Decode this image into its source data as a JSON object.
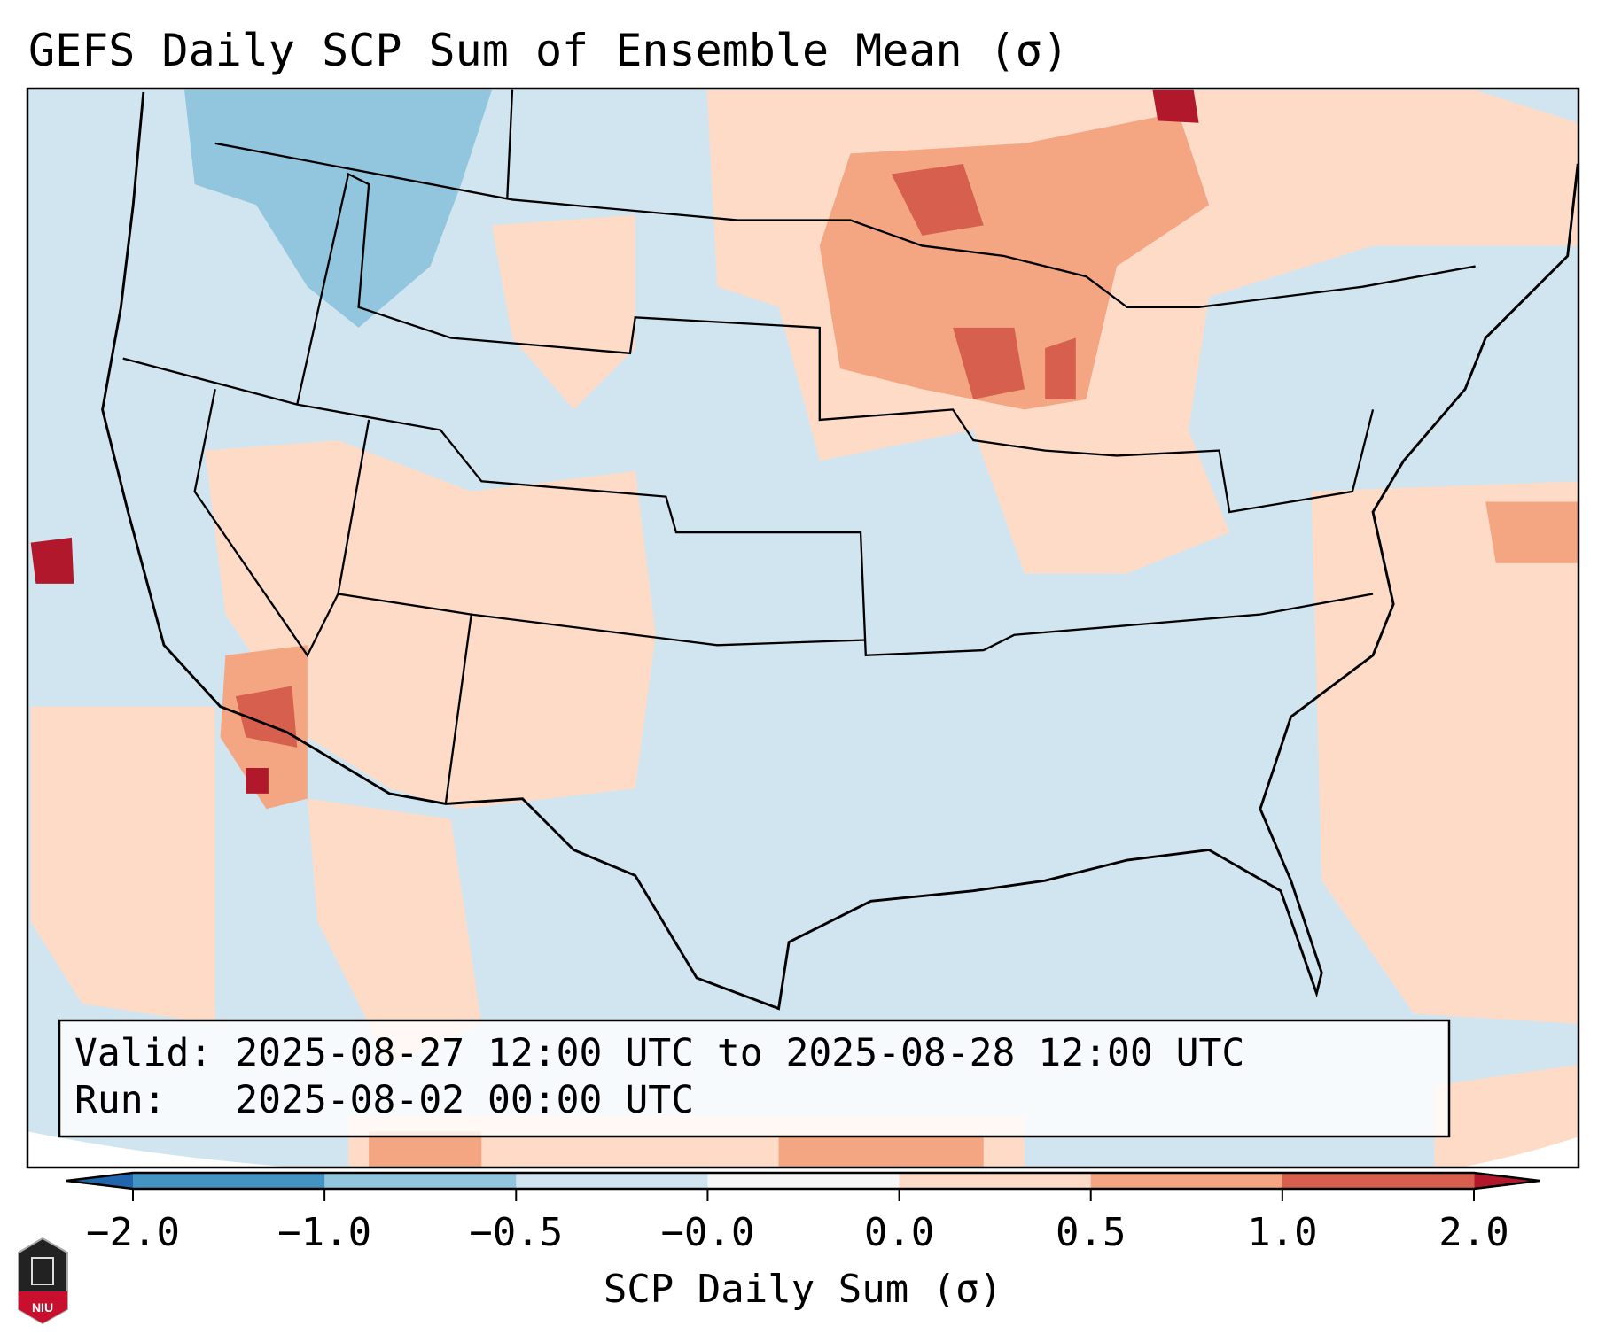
{
  "chart_data": {
    "type": "heatmap",
    "title": "GEFS Daily SCP Sum of Ensemble Mean (σ)",
    "colorbar": {
      "label": "SCP Daily Sum (σ)",
      "ticks": [
        "-2.0",
        "-1.0",
        "-0.5",
        "-0.0",
        "0.0",
        "0.5",
        "1.0",
        "2.0"
      ],
      "colors": [
        "#4393c3",
        "#92c5de",
        "#d1e5f0",
        "#f7f7f7",
        "#fddbc7",
        "#f4a582",
        "#d6604d"
      ],
      "extend_low_color": "#2166ac",
      "extend_high_color": "#b2182b"
    },
    "info": {
      "valid": "Valid: 2025-08-27 12:00 UTC to 2025-08-28 12:00 UTC",
      "run": "Run:   2025-08-02 00:00 UTC"
    },
    "region": "Contiguous United States"
  },
  "logo": {
    "text": "NIU"
  }
}
